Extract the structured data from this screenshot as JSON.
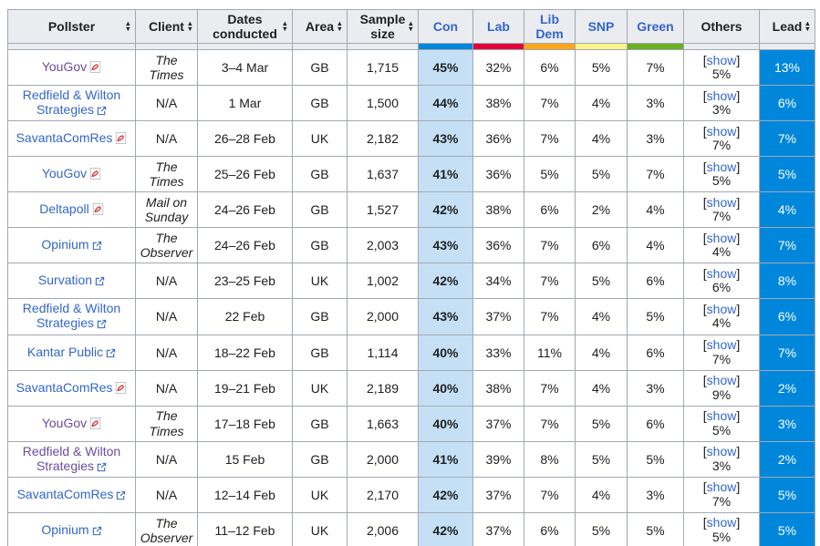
{
  "ui": {
    "sort_asc": "▲",
    "sort_desc": "▼",
    "bracket_open": "[",
    "bracket_close": "]",
    "show_label": "show"
  },
  "colors": {
    "con": "#0087DC",
    "lab": "#E4003B",
    "libdem": "#FAA61A",
    "snp": "#FDF38E",
    "green": "#6AB023",
    "lead_bg": "#0087DC",
    "con_cell_bg": "#c5e0f5",
    "header_bg": "#eaecf0",
    "link": "#3366cc",
    "visited_link": "#6b4ba1",
    "border": "#a2a9b1"
  },
  "table": {
    "columns": [
      {
        "label": "Pollster",
        "sortable": true
      },
      {
        "label": "Client",
        "sortable": true
      },
      {
        "label": "Dates conducted",
        "sortable": true
      },
      {
        "label": "Area",
        "sortable": true
      },
      {
        "label": "Sample size",
        "sortable": true
      },
      {
        "label": "Con",
        "sortable": false,
        "link": true,
        "party_color": "#0087DC"
      },
      {
        "label": "Lab",
        "sortable": false,
        "link": true,
        "party_color": "#E4003B"
      },
      {
        "label": "Lib Dem",
        "sortable": false,
        "link": true,
        "party_color": "#FAA61A"
      },
      {
        "label": "SNP",
        "sortable": false,
        "link": true,
        "party_color": "#FDF38E"
      },
      {
        "label": "Green",
        "sortable": false,
        "link": true,
        "party_color": "#6AB023"
      },
      {
        "label": "Others",
        "sortable": false
      },
      {
        "label": "Lead",
        "sortable": true
      }
    ],
    "rows": [
      {
        "pollster": "YouGov",
        "visited": true,
        "icon": "pdf",
        "client": "The Times",
        "dates": "3–4 Mar",
        "area": "GB",
        "sample": "1,715",
        "con": "45%",
        "lab": "32%",
        "libdem": "6%",
        "snp": "5%",
        "green": "7%",
        "others": "5%",
        "lead": "13%"
      },
      {
        "pollster": "Redfield & Wilton Strategies",
        "visited": false,
        "icon": "ext",
        "client": "N/A",
        "dates": "1 Mar",
        "area": "GB",
        "sample": "1,500",
        "con": "44%",
        "lab": "38%",
        "libdem": "7%",
        "snp": "4%",
        "green": "3%",
        "others": "3%",
        "lead": "6%"
      },
      {
        "pollster": "SavantaComRes",
        "visited": false,
        "icon": "pdf",
        "client": "N/A",
        "dates": "26–28 Feb",
        "area": "UK",
        "sample": "2,182",
        "con": "43%",
        "lab": "36%",
        "libdem": "7%",
        "snp": "4%",
        "green": "3%",
        "others": "7%",
        "lead": "7%"
      },
      {
        "pollster": "YouGov",
        "visited": false,
        "icon": "pdf",
        "client": "The Times",
        "dates": "25–26 Feb",
        "area": "GB",
        "sample": "1,637",
        "con": "41%",
        "lab": "36%",
        "libdem": "5%",
        "snp": "5%",
        "green": "7%",
        "others": "5%",
        "lead": "5%"
      },
      {
        "pollster": "Deltapoll",
        "visited": false,
        "icon": "pdf",
        "client": "Mail on Sunday",
        "dates": "24–26 Feb",
        "area": "GB",
        "sample": "1,527",
        "con": "42%",
        "lab": "38%",
        "libdem": "6%",
        "snp": "2%",
        "green": "4%",
        "others": "7%",
        "lead": "4%"
      },
      {
        "pollster": "Opinium",
        "visited": false,
        "icon": "ext",
        "client": "The Observer",
        "dates": "24–26 Feb",
        "area": "GB",
        "sample": "2,003",
        "con": "43%",
        "lab": "36%",
        "libdem": "7%",
        "snp": "6%",
        "green": "4%",
        "others": "4%",
        "lead": "7%"
      },
      {
        "pollster": "Survation",
        "visited": false,
        "icon": "ext",
        "client": "N/A",
        "dates": "23–25 Feb",
        "area": "UK",
        "sample": "1,002",
        "con": "42%",
        "lab": "34%",
        "libdem": "7%",
        "snp": "5%",
        "green": "6%",
        "others": "6%",
        "lead": "8%"
      },
      {
        "pollster": "Redfield & Wilton Strategies",
        "visited": false,
        "icon": "ext",
        "client": "N/A",
        "dates": "22 Feb",
        "area": "GB",
        "sample": "2,000",
        "con": "43%",
        "lab": "37%",
        "libdem": "7%",
        "snp": "4%",
        "green": "5%",
        "others": "4%",
        "lead": "6%"
      },
      {
        "pollster": "Kantar Public",
        "visited": false,
        "icon": "ext",
        "client": "N/A",
        "dates": "18–22 Feb",
        "area": "GB",
        "sample": "1,114",
        "con": "40%",
        "lab": "33%",
        "libdem": "11%",
        "snp": "4%",
        "green": "6%",
        "others": "7%",
        "lead": "7%"
      },
      {
        "pollster": "SavantaComRes",
        "visited": false,
        "icon": "pdf",
        "client": "N/A",
        "dates": "19–21 Feb",
        "area": "UK",
        "sample": "2,189",
        "con": "40%",
        "lab": "38%",
        "libdem": "7%",
        "snp": "4%",
        "green": "3%",
        "others": "9%",
        "lead": "2%"
      },
      {
        "pollster": "YouGov",
        "visited": true,
        "icon": "pdf",
        "client": "The Times",
        "dates": "17–18 Feb",
        "area": "GB",
        "sample": "1,663",
        "con": "40%",
        "lab": "37%",
        "libdem": "7%",
        "snp": "5%",
        "green": "6%",
        "others": "5%",
        "lead": "3%"
      },
      {
        "pollster": "Redfield & Wilton Strategies",
        "visited": true,
        "icon": "ext",
        "client": "N/A",
        "dates": "15 Feb",
        "area": "GB",
        "sample": "2,000",
        "con": "41%",
        "lab": "39%",
        "libdem": "8%",
        "snp": "5%",
        "green": "5%",
        "others": "3%",
        "lead": "2%"
      },
      {
        "pollster": "SavantaComRes",
        "visited": false,
        "icon": "ext",
        "client": "N/A",
        "dates": "12–14 Feb",
        "area": "UK",
        "sample": "2,170",
        "con": "42%",
        "lab": "37%",
        "libdem": "7%",
        "snp": "4%",
        "green": "3%",
        "others": "7%",
        "lead": "5%"
      },
      {
        "pollster": "Opinium",
        "visited": false,
        "icon": "ext",
        "client": "The Observer",
        "dates": "11–12 Feb",
        "area": "UK",
        "sample": "2,006",
        "con": "42%",
        "lab": "37%",
        "libdem": "6%",
        "snp": "5%",
        "green": "5%",
        "others": "5%",
        "lead": "5%"
      }
    ]
  }
}
